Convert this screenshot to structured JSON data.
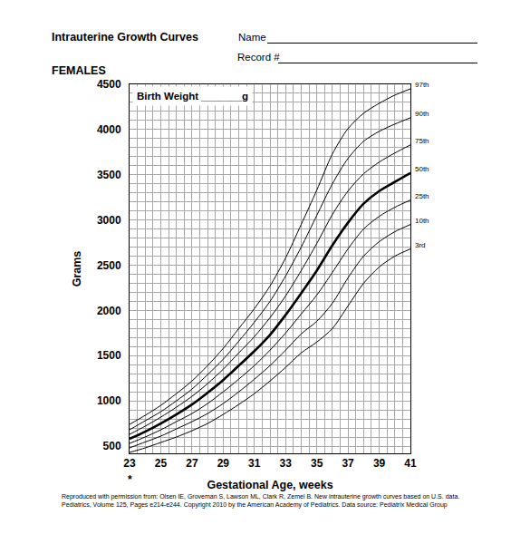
{
  "chart_data": {
    "type": "line",
    "title": "Intrauterine Growth Curves",
    "subtitle": "FEMALES",
    "xlabel": "Gestational Age, weeks",
    "ylabel": "Grams",
    "x": [
      23,
      24,
      25,
      26,
      27,
      28,
      29,
      30,
      31,
      32,
      33,
      34,
      35,
      36,
      37,
      38,
      39,
      40,
      41
    ],
    "series": [
      {
        "name": "97th",
        "color": "#000000",
        "line_style": "solid",
        "values": [
          740,
          840,
          950,
          1080,
          1220,
          1390,
          1580,
          1800,
          2020,
          2270,
          2580,
          2950,
          3330,
          3730,
          4010,
          4180,
          4290,
          4380,
          4450
        ]
      },
      {
        "name": "90th",
        "color": "#000000",
        "line_style": "solid",
        "values": [
          680,
          780,
          880,
          1000,
          1130,
          1290,
          1460,
          1660,
          1870,
          2100,
          2380,
          2700,
          3050,
          3400,
          3680,
          3870,
          3980,
          4060,
          4130
        ]
      },
      {
        "name": "75th",
        "color": "#000000",
        "line_style": "solid",
        "values": [
          630,
          720,
          820,
          930,
          1050,
          1190,
          1350,
          1530,
          1710,
          1920,
          2160,
          2440,
          2740,
          3060,
          3320,
          3510,
          3640,
          3740,
          3830
        ]
      },
      {
        "name": "50th",
        "color": "#000000",
        "line_style": "thick",
        "values": [
          580,
          660,
          750,
          850,
          960,
          1090,
          1230,
          1390,
          1550,
          1730,
          1950,
          2190,
          2440,
          2720,
          2970,
          3180,
          3320,
          3420,
          3520
        ]
      },
      {
        "name": "25th",
        "color": "#000000",
        "line_style": "solid",
        "values": [
          530,
          600,
          680,
          770,
          860,
          970,
          1100,
          1240,
          1390,
          1560,
          1750,
          1960,
          2170,
          2420,
          2680,
          2900,
          3040,
          3140,
          3220
        ]
      },
      {
        "name": "10th",
        "color": "#000000",
        "line_style": "solid",
        "values": [
          480,
          545,
          610,
          690,
          770,
          860,
          970,
          1100,
          1240,
          1390,
          1560,
          1740,
          1880,
          2080,
          2360,
          2600,
          2760,
          2870,
          2950
        ]
      },
      {
        "name": "3rd",
        "color": "#000000",
        "line_style": "solid",
        "values": [
          430,
          480,
          540,
          600,
          670,
          750,
          850,
          960,
          1080,
          1220,
          1370,
          1530,
          1650,
          1800,
          2050,
          2300,
          2480,
          2600,
          2680
        ]
      }
    ],
    "xlim": [
      23,
      41
    ],
    "xticks": [
      23,
      25,
      27,
      29,
      31,
      33,
      35,
      37,
      39,
      41
    ],
    "ylim": [
      420,
      4500
    ],
    "yticks": [
      500,
      1000,
      1500,
      2000,
      2500,
      3000,
      3500,
      4000,
      4500
    ],
    "grid": true,
    "annotations": [
      {
        "text": "Birth Weight _______g"
      },
      {
        "text": "*",
        "x": 23
      }
    ]
  },
  "form_fields": [
    "Name",
    "Record #"
  ],
  "footnote": [
    "Reproduced with permission from: Olsen IE, Groveman S, Lawson ML, Clark R, Zemel B. New intrauterine growth curves based on U.S. data.",
    "Pediatrics, Volume 125, Pages e214-e244. Copyright 2010 by the American Academy of Pediatrics.  Data source: Pediatrix Medical Group"
  ]
}
